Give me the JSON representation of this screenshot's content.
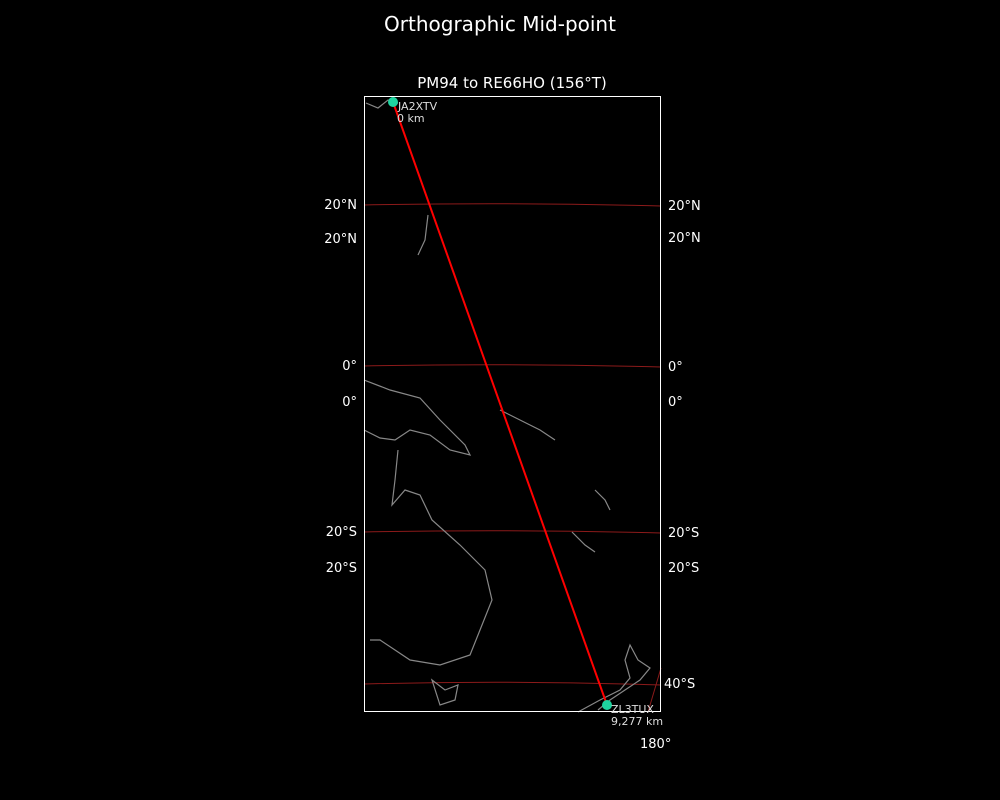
{
  "figure_title": "Orthographic Mid-point",
  "map_title": "PM94 to RE66HO (156°T)",
  "colors": {
    "background": "#000000",
    "path": "#ff0000",
    "graticule": "#8b1a1a",
    "coast": "#888888",
    "station": "#1ed4a0"
  },
  "start": {
    "call": "JA2XTV",
    "distance": "0 km"
  },
  "end": {
    "call": "ZL3TUX",
    "distance": "9,277 km"
  },
  "lat_labels_left": [
    "20°N",
    "20°N",
    "0°",
    "0°",
    "20°S",
    "20°S"
  ],
  "lat_labels_right": [
    "20°N",
    "20°N",
    "0°",
    "0°",
    "20°S",
    "20°S",
    "40°S"
  ],
  "lon_labels": [
    "180°"
  ]
}
